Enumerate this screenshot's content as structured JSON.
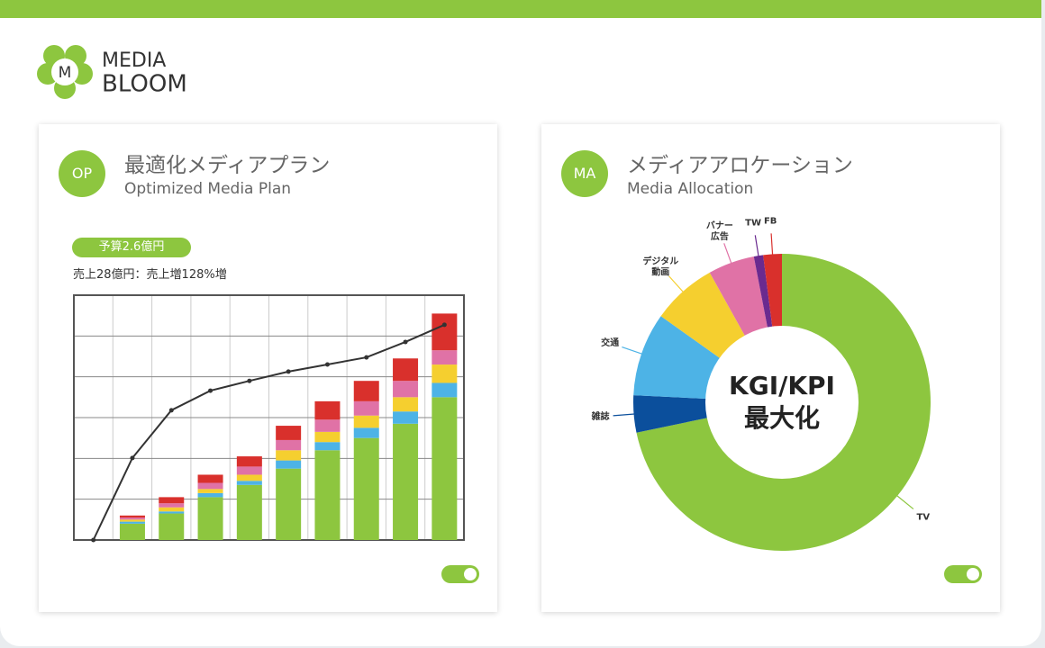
{
  "header": {
    "logo_letter": "M",
    "brand_top": "MEDIA",
    "brand_bottom": "BLOOM"
  },
  "cards": [
    {
      "badge": "OP",
      "title": "最適化メディアプラン",
      "subtitle": "Optimized Media Plan",
      "budget_tag": "予算2.6億円",
      "summary": "売上28億円：売上増128%増",
      "chart_data": {
        "type": "bar",
        "categories": [
          null,
          null,
          null,
          null,
          null,
          null,
          null,
          null,
          null,
          null
        ],
        "ylim": [
          0,
          6
        ],
        "yticks": [
          0,
          1,
          2,
          3,
          4,
          5,
          6
        ],
        "grid": true,
        "stacked": true,
        "y2lim": [
          0,
          100
        ],
        "series": [
          {
            "color": "#8dc63f",
            "values": [
              0,
              0.4,
              0.65,
              1.05,
              1.35,
              1.75,
              2.2,
              2.5,
              2.85,
              3.5
            ]
          },
          {
            "color": "#4db3e6",
            "values": [
              0,
              0.05,
              0.05,
              0.1,
              0.1,
              0.2,
              0.2,
              0.25,
              0.3,
              0.35
            ]
          },
          {
            "color": "#f5cf2f",
            "values": [
              0,
              0.05,
              0.1,
              0.1,
              0.15,
              0.25,
              0.25,
              0.3,
              0.35,
              0.45
            ]
          },
          {
            "color": "#e072a6",
            "values": [
              0,
              0.05,
              0.1,
              0.15,
              0.2,
              0.25,
              0.3,
              0.35,
              0.4,
              0.35
            ]
          },
          {
            "color": "#d9302c",
            "values": [
              0,
              0.05,
              0.15,
              0.2,
              0.25,
              0.35,
              0.45,
              0.5,
              0.55,
              0.9
            ]
          },
          {
            "type": "line",
            "axis": "y2",
            "color": "#333333",
            "values": [
              0,
              33.5,
              53,
              61,
              65,
              68.8,
              71.7,
              74.6,
              80.9,
              87.9
            ]
          }
        ]
      }
    },
    {
      "badge": "MA",
      "title": "メディアアロケーション",
      "subtitle": "Media Allocation",
      "chart_data": {
        "type": "pie",
        "donut": true,
        "center_text": [
          "KGI/KPI",
          "最大化"
        ],
        "categories": [
          "TV",
          "雑誌",
          "交通",
          "デジタル\n動画",
          "バナー\n広告",
          "TW",
          "FB"
        ],
        "values": [
          71,
          4,
          9,
          7,
          5,
          1,
          2
        ],
        "colors": [
          "#8dc63f",
          "#0b4f9c",
          "#4db3e6",
          "#f5cf2f",
          "#e072a6",
          "#6a2a8f",
          "#d9302c"
        ]
      }
    }
  ]
}
